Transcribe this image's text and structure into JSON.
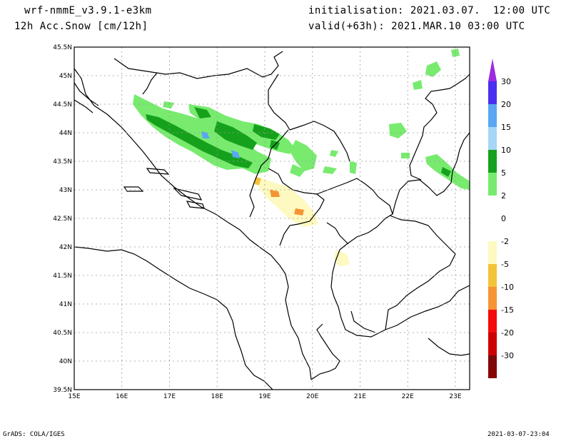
{
  "header": {
    "model": "wrf-nmmE_v3.9.1-e3km",
    "field": "12h Acc.Snow [cm/12h]",
    "init": "initialisation: 2021.03.07.  12:00 UTC",
    "valid": "valid(+63h): 2021.MAR.10 03:00 UTC"
  },
  "footer": {
    "credit": "GrADS: COLA/IGES",
    "timestamp": "2021-03-07-23:04"
  },
  "map": {
    "lat_labels": [
      "45.5N",
      "45N",
      "44.5N",
      "44N",
      "43.5N",
      "43N",
      "42.5N",
      "42N",
      "41.5N",
      "41N",
      "40.5N",
      "40N",
      "39.5N"
    ],
    "lon_labels": [
      "15E",
      "16E",
      "17E",
      "18E",
      "19E",
      "20E",
      "21E",
      "22E",
      "23E"
    ],
    "lon_range": [
      15,
      23.3
    ],
    "lat_range": [
      39.5,
      45.5
    ]
  },
  "colorbar": {
    "labels": [
      "30",
      "20",
      "15",
      "10",
      "5",
      "2",
      "0",
      "-2",
      "-5",
      "-10",
      "-15",
      "-20",
      "-30"
    ],
    "colors": [
      "#4b2ff0",
      "#5aa6f2",
      "#a5d5f7",
      "#16a11c",
      "#78eb6f",
      "#ffffff",
      "#ffffff",
      "#fdf9c0",
      "#f3c33a",
      "#f59434",
      "#f50a0a",
      "#cc0000",
      "#8b0000"
    ],
    "top_arrow_color": "#9a2be0",
    "bottom_arrow_color": "#7a0a0a"
  }
}
